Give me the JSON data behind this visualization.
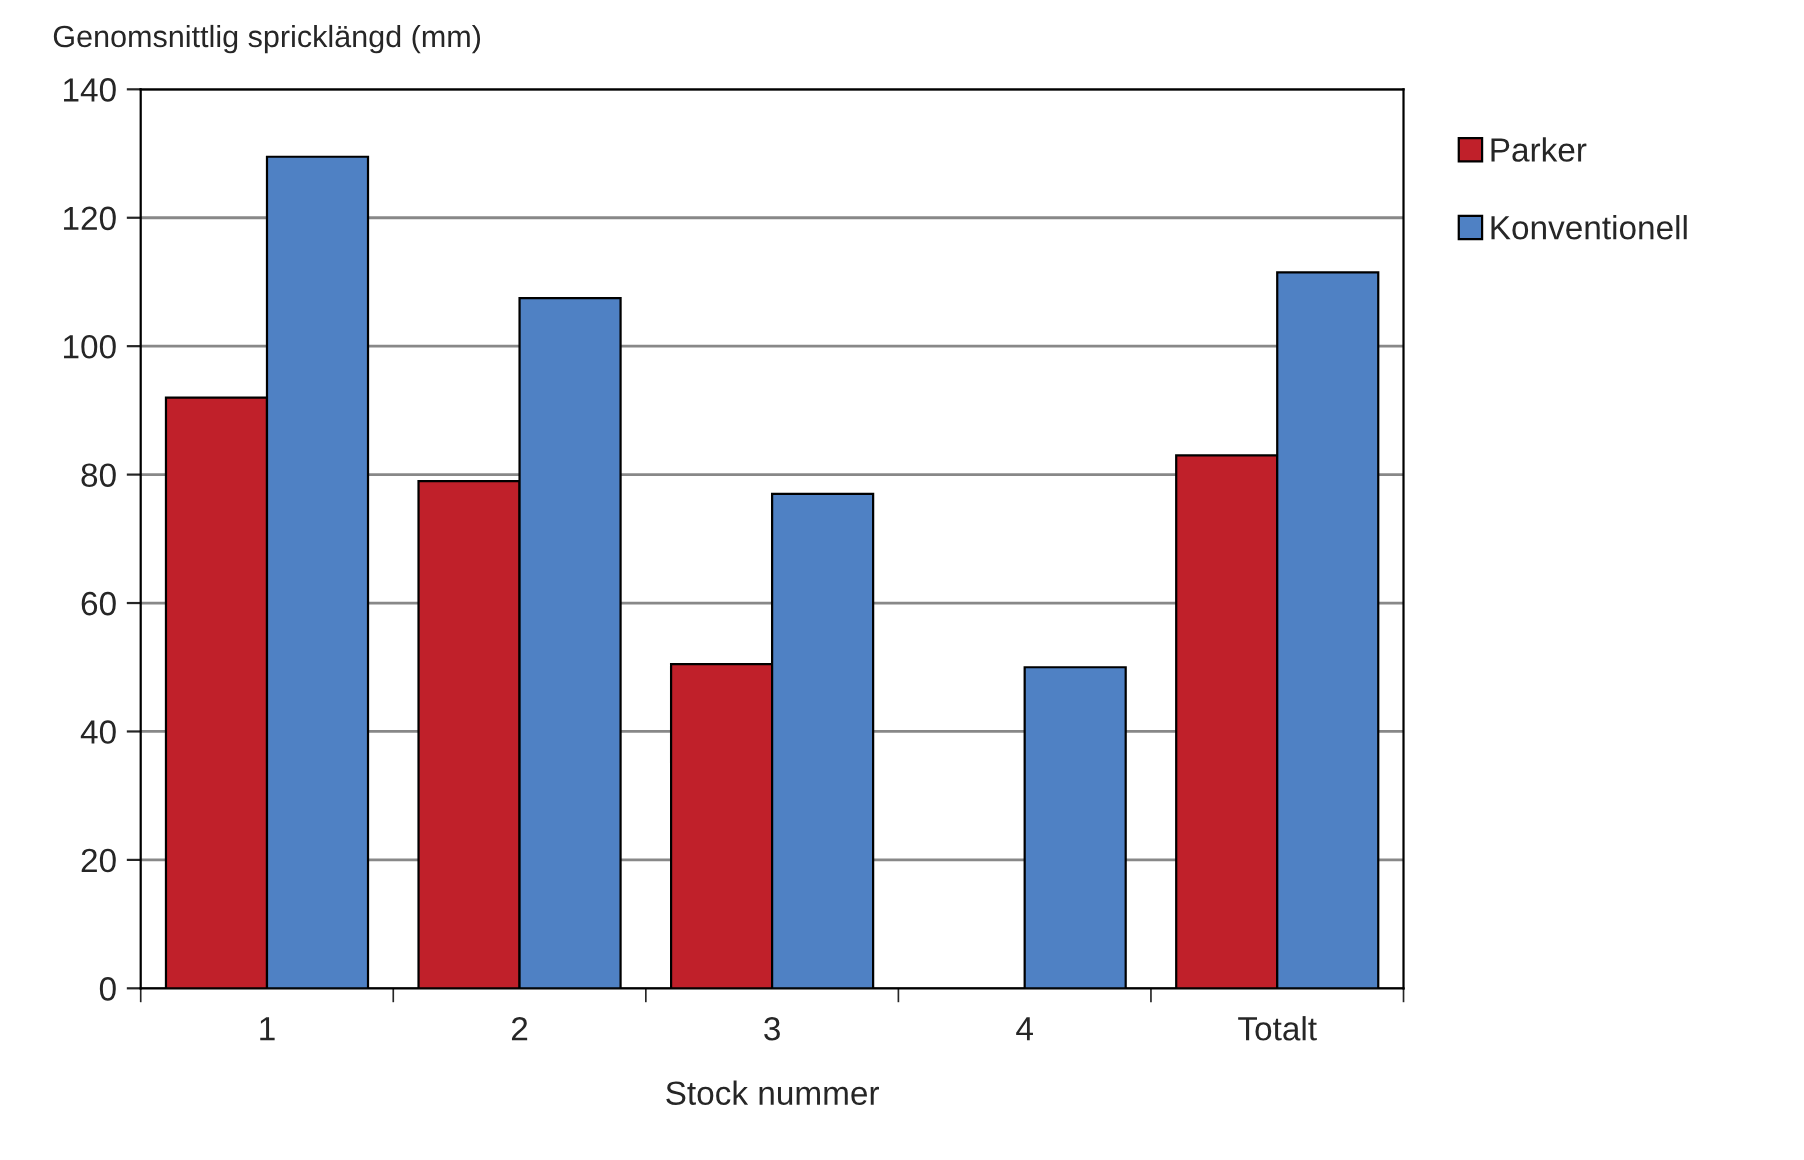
{
  "chart_data": {
    "type": "bar",
    "ylabel": "Genomsnittlig spricklängd (mm)",
    "xlabel": "Stock nummer",
    "categories": [
      "1",
      "2",
      "3",
      "4",
      "Totalt"
    ],
    "series": [
      {
        "name": "Parker",
        "color": "#c0202a",
        "values": [
          92,
          79,
          50.5,
          null,
          83
        ]
      },
      {
        "name": "Konventionell",
        "color": "#4f81c4",
        "values": [
          129.5,
          107.5,
          77,
          50,
          111.5
        ]
      }
    ],
    "ylim": [
      0,
      140
    ],
    "yticks": [
      0,
      20,
      40,
      60,
      80,
      100,
      120,
      140
    ],
    "grid": "y",
    "legend": "right"
  }
}
